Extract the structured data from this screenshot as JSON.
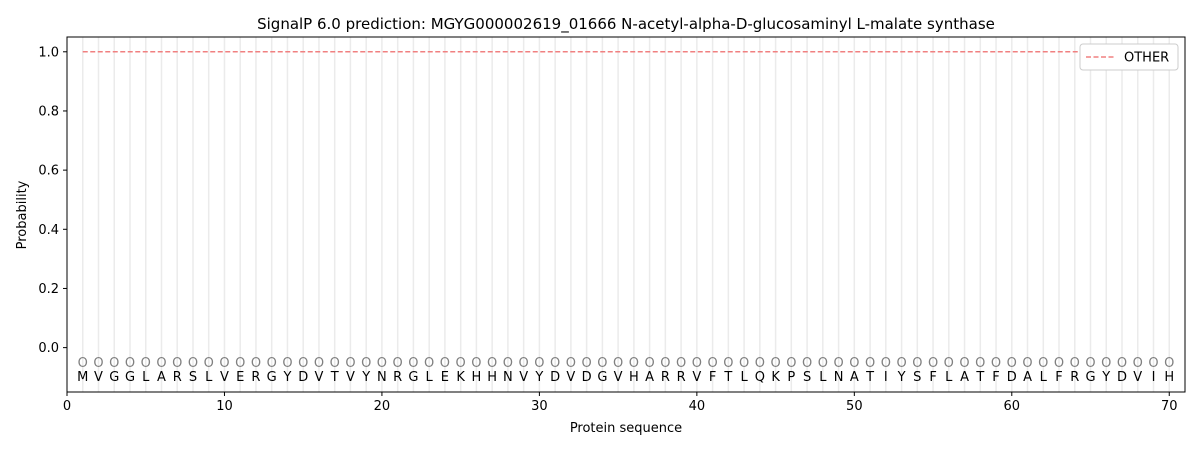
{
  "chart_data": {
    "type": "line",
    "title": "SignalP 6.0 prediction: MGYG000002619_01666 N-acetyl-alpha-D-glucosaminyl L-malate synthase",
    "xlabel": "Protein sequence",
    "ylabel": "Probability",
    "xlim": [
      0,
      71
    ],
    "ylim": [
      -0.15,
      1.05
    ],
    "xticks": [
      0,
      10,
      20,
      30,
      40,
      50,
      60,
      70
    ],
    "yticks": [
      0.0,
      0.2,
      0.4,
      0.6,
      0.8,
      1.0
    ],
    "ytick_labels": [
      "0.0",
      "0.2",
      "0.4",
      "0.6",
      "0.8",
      "1.0"
    ],
    "grid": "vertical lines at each residue",
    "legend_placement": "top-right",
    "sequence": [
      "M",
      "V",
      "G",
      "G",
      "L",
      "A",
      "R",
      "S",
      "L",
      "V",
      "E",
      "R",
      "G",
      "Y",
      "D",
      "V",
      "T",
      "V",
      "Y",
      "N",
      "R",
      "G",
      "L",
      "E",
      "K",
      "H",
      "H",
      "N",
      "V",
      "Y",
      "D",
      "V",
      "D",
      "G",
      "V",
      "H",
      "A",
      "R",
      "R",
      "V",
      "F",
      "T",
      "L",
      "Q",
      "K",
      "P",
      "S",
      "L",
      "N",
      "A",
      "T",
      "I",
      "Y",
      "S",
      "F",
      "L",
      "A",
      "T",
      "F",
      "D",
      "A",
      "L",
      "F",
      "R",
      "G",
      "Y",
      "D",
      "V",
      "I",
      "H"
    ],
    "region_label": "O",
    "series": [
      {
        "name": "OTHER",
        "color": "#f08080",
        "style": "dashed",
        "x_range": [
          1,
          70
        ],
        "value": 1.0
      }
    ]
  }
}
